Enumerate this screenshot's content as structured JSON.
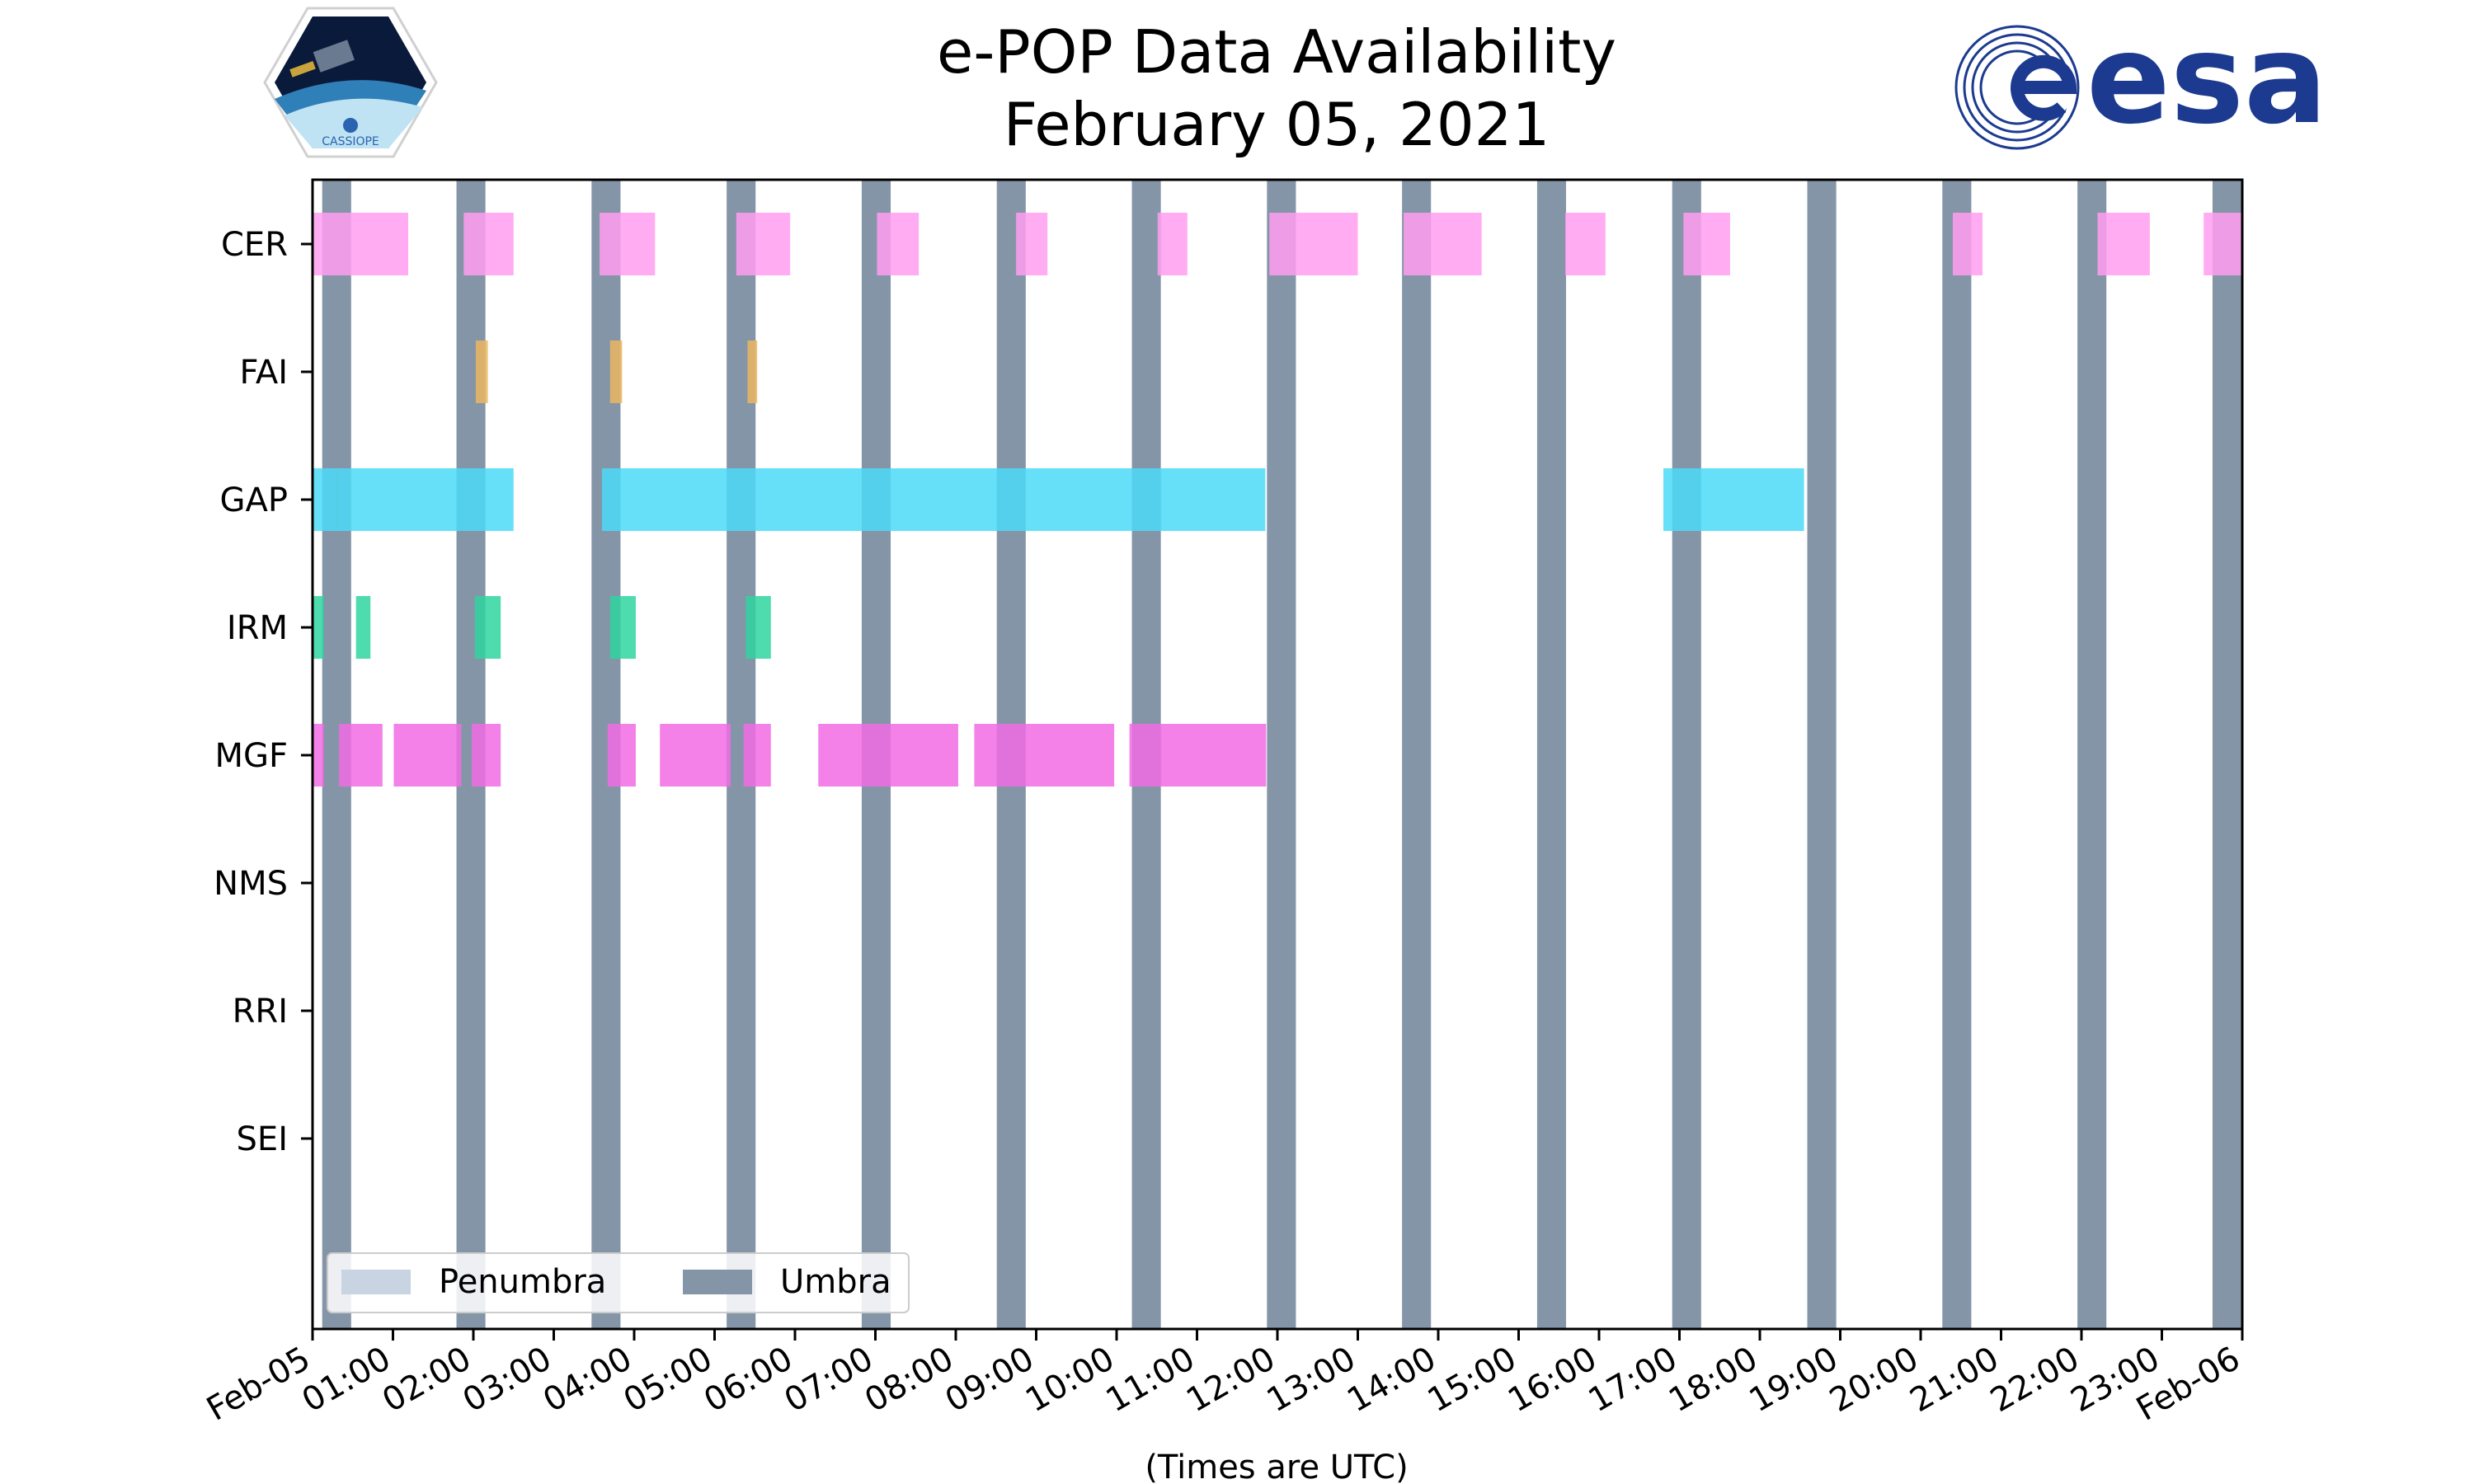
{
  "chart_data": {
    "type": "timeline",
    "title_line1": "e-POP Data Availability",
    "title_line2": "February 05, 2021",
    "xlabel": "(Times are UTC)",
    "x_range_hours": [
      0,
      24
    ],
    "x_tick_labels": [
      "Feb-05",
      "01:00",
      "02:00",
      "03:00",
      "04:00",
      "05:00",
      "06:00",
      "07:00",
      "08:00",
      "09:00",
      "10:00",
      "11:00",
      "12:00",
      "13:00",
      "14:00",
      "15:00",
      "16:00",
      "17:00",
      "18:00",
      "19:00",
      "20:00",
      "21:00",
      "22:00",
      "23:00",
      "Feb-06"
    ],
    "instruments": [
      "CER",
      "FAI",
      "GAP",
      "IRM",
      "MGF",
      "NMS",
      "RRI",
      "SEI"
    ],
    "legend": {
      "placement": "lower-left",
      "entries": [
        {
          "label": "Penumbra",
          "color": "#c9d4e3"
        },
        {
          "label": "Umbra",
          "color": "#8595a8"
        }
      ]
    },
    "umbra_start_hours": [
      0.12,
      1.79,
      3.47,
      5.15,
      6.83,
      8.51,
      10.19,
      11.87,
      13.55,
      15.23,
      16.91,
      18.59,
      20.27,
      21.95,
      23.63
    ],
    "umbra_duration_hours": 0.36,
    "umbra_color": "#8595a8",
    "series": [
      {
        "name": "CER",
        "color": "#ff9df0",
        "intervals": [
          [
            0.0,
            1.19
          ],
          [
            1.88,
            2.5
          ],
          [
            3.57,
            4.26
          ],
          [
            5.27,
            5.94
          ],
          [
            7.02,
            7.54
          ],
          [
            8.75,
            9.14
          ],
          [
            10.51,
            10.88
          ],
          [
            11.9,
            13.0
          ],
          [
            13.57,
            14.54
          ],
          [
            15.58,
            16.08
          ],
          [
            17.05,
            17.63
          ],
          [
            20.4,
            20.77
          ],
          [
            22.2,
            22.85
          ],
          [
            23.52,
            24.0
          ]
        ]
      },
      {
        "name": "FAI",
        "color": "#eab660",
        "intervals": [
          [
            2.03,
            2.18
          ],
          [
            3.7,
            3.85
          ],
          [
            5.41,
            5.53
          ]
        ]
      },
      {
        "name": "GAP",
        "color": "#4bdaf8",
        "intervals": [
          [
            0.0,
            0.3
          ],
          [
            0.3,
            2.5
          ],
          [
            3.6,
            11.85
          ],
          [
            16.8,
            18.55
          ]
        ]
      },
      {
        "name": "IRM",
        "color": "#2fd5a0",
        "intervals": [
          [
            0.0,
            0.14
          ],
          [
            0.54,
            0.72
          ],
          [
            2.02,
            2.34
          ],
          [
            3.7,
            4.02
          ],
          [
            5.39,
            5.7
          ]
        ]
      },
      {
        "name": "MGF",
        "color": "#f16be4",
        "intervals": [
          [
            0.0,
            0.14
          ],
          [
            0.33,
            0.87
          ],
          [
            1.01,
            1.85
          ],
          [
            1.98,
            2.34
          ],
          [
            3.67,
            4.02
          ],
          [
            4.32,
            5.2
          ],
          [
            5.36,
            5.7
          ],
          [
            6.29,
            8.03
          ],
          [
            8.23,
            9.97
          ],
          [
            10.16,
            11.86
          ]
        ]
      },
      {
        "name": "NMS",
        "color": "#cccccc",
        "intervals": []
      },
      {
        "name": "RRI",
        "color": "#cccccc",
        "intervals": []
      },
      {
        "name": "SEI",
        "color": "#cccccc",
        "intervals": []
      }
    ]
  },
  "logos": {
    "left_logo_text": "CASSIOPE",
    "right_logo_text": "esa",
    "esa_blue": "#1c3a8f"
  }
}
